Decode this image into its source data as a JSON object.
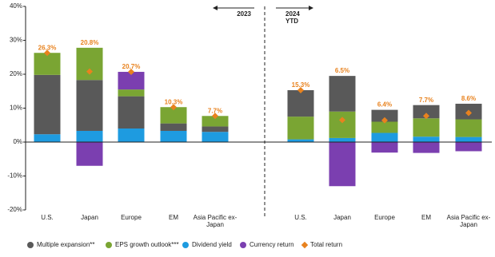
{
  "chart_data": {
    "type": "stacked-bar",
    "categories": [
      "U.S.",
      "Japan",
      "Europe",
      "EM",
      "Asia Pacific ex-Japan",
      "U.S.",
      "Japan",
      "Europe",
      "EM",
      "Asia Pacific ex-Japan"
    ],
    "annotations": [
      "2023",
      "2024 YTD"
    ],
    "series": [
      {
        "name": "Multiple expansion**",
        "color": "#595959",
        "values": [
          17.5,
          15,
          9.5,
          2.2,
          1.6,
          7.8,
          10.5,
          3.5,
          3.9,
          4.6
        ]
      },
      {
        "name": "EPS growth outlook***",
        "color": "#7aa533",
        "values": [
          6.5,
          9.5,
          2,
          4.8,
          3.1,
          6.7,
          7.8,
          3.3,
          5.4,
          5.2
        ]
      },
      {
        "name": "Dividend yield",
        "color": "#1e9be0",
        "values": [
          2.3,
          3.3,
          4,
          3.3,
          3,
          0.8,
          1.2,
          2.7,
          1.6,
          1.5
        ]
      },
      {
        "name": "Currency return",
        "color": "#7b3fb0",
        "values": [
          0,
          -7,
          5.2,
          0,
          0,
          0,
          -13,
          -3.1,
          -3.2,
          -2.7
        ]
      }
    ],
    "total": {
      "name": "Total return",
      "color": "#e8821e",
      "values": [
        26.3,
        20.8,
        20.7,
        10.3,
        7.7,
        15.3,
        6.5,
        6.4,
        7.7,
        8.6
      ],
      "value_labels": [
        "26.3%",
        "20.8%",
        "20.7%",
        "10.3%",
        "7.7%",
        "15.3%",
        "6.5%",
        "6.4%",
        "7.7%",
        "8.6%"
      ]
    },
    "ylim": [
      -20,
      40
    ],
    "yticks": [
      {
        "value": -20,
        "label": "-20%"
      },
      {
        "value": -10,
        "label": "-10%"
      },
      {
        "value": 0,
        "label": "0%"
      },
      {
        "value": 10,
        "label": "10%"
      },
      {
        "value": 20,
        "label": "20%"
      },
      {
        "value": 30,
        "label": "30%"
      },
      {
        "value": 40,
        "label": "40%"
      }
    ]
  }
}
